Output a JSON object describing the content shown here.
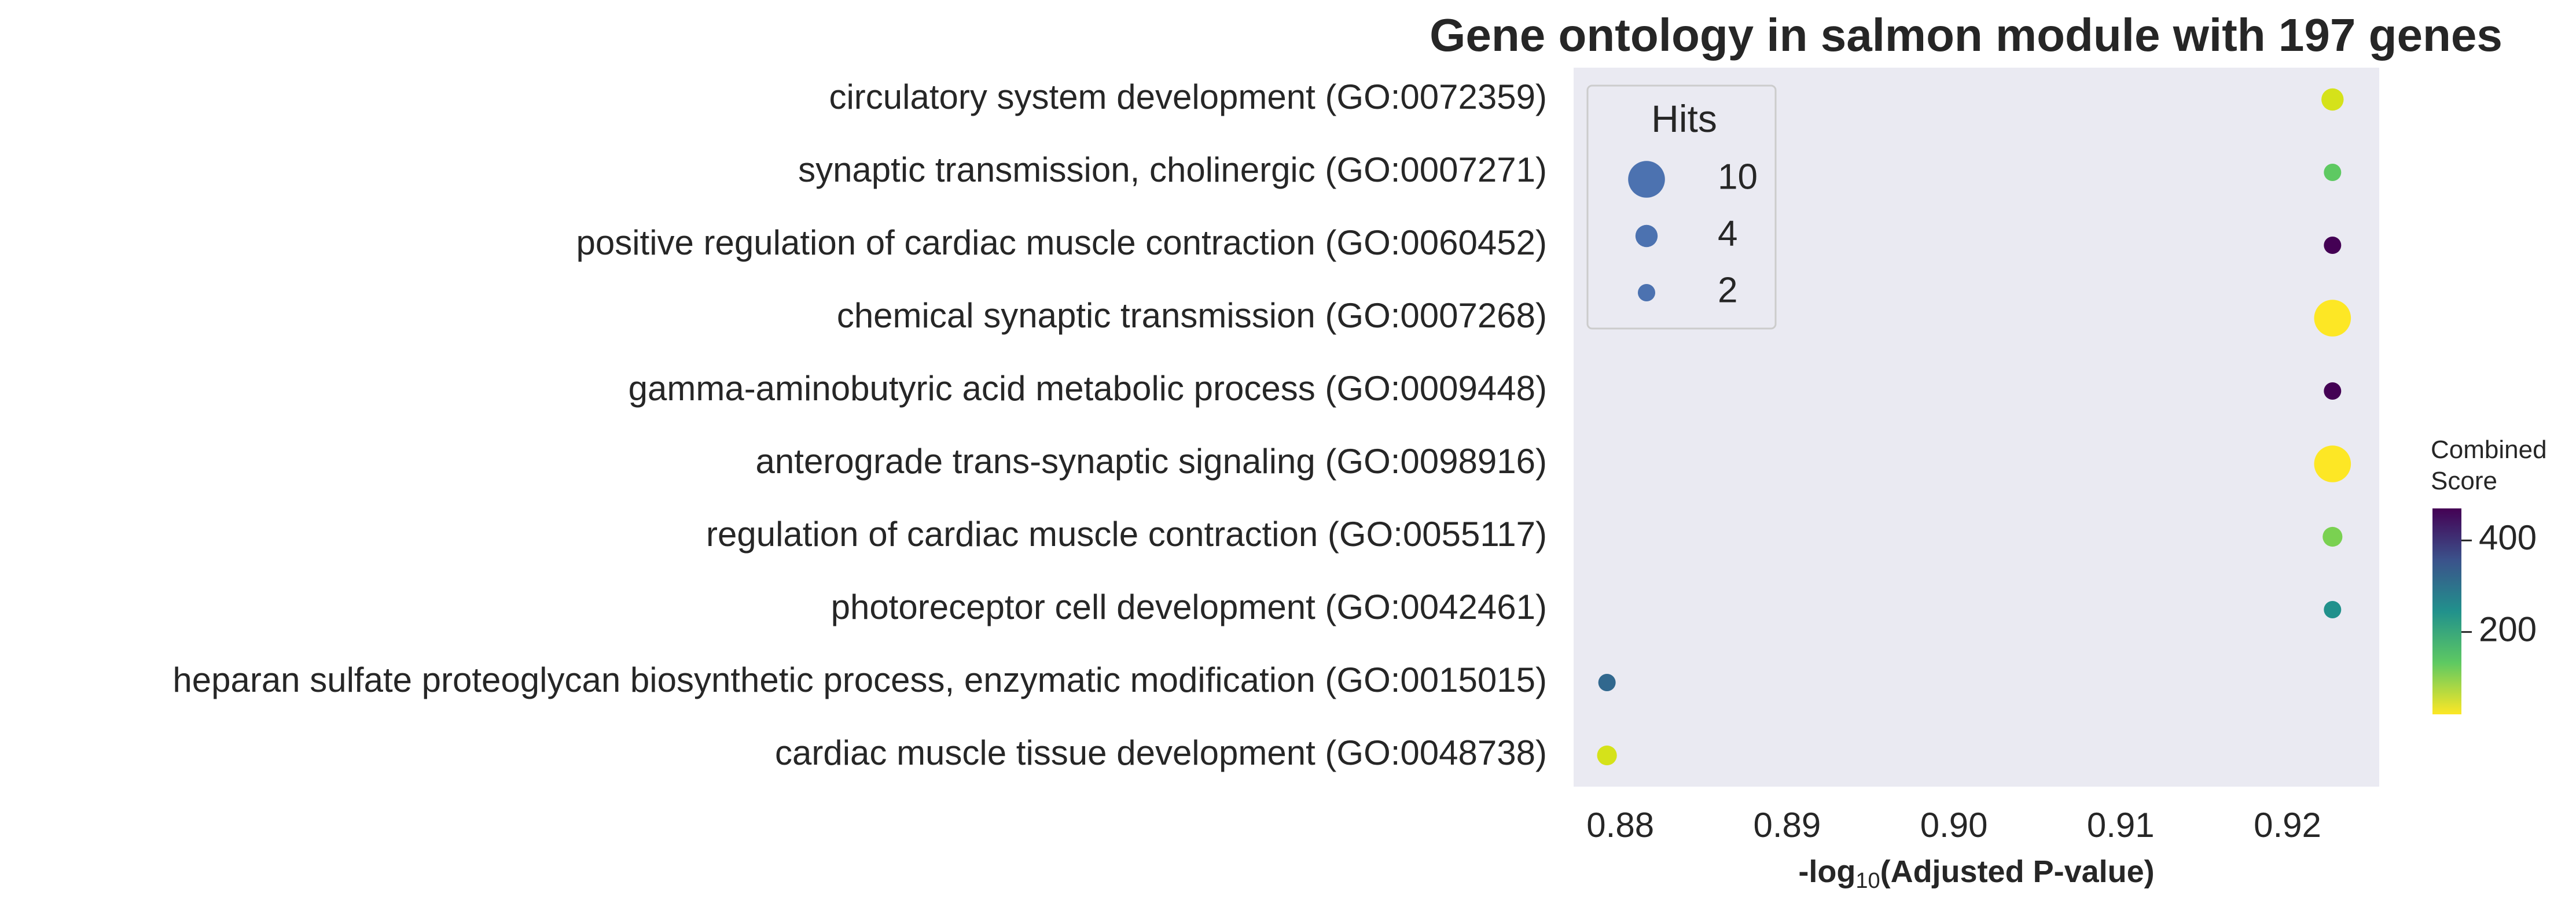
{
  "chart_data": {
    "type": "scatter",
    "title": "Gene ontology in salmon module with 197 genes",
    "xlabel": {
      "prefix": "-log",
      "subscript": "10",
      "suffix": "(Adjusted P-value)"
    },
    "ylabel": "",
    "xlim": [
      0.8772,
      0.9255
    ],
    "xticks": [
      {
        "value": 0.88,
        "label": "0.88"
      },
      {
        "value": 0.89,
        "label": "0.89"
      },
      {
        "value": 0.9,
        "label": "0.90"
      },
      {
        "value": 0.91,
        "label": "0.91"
      },
      {
        "value": 0.92,
        "label": "0.92"
      }
    ],
    "grid": false,
    "background_color": "#eaeaf2",
    "colormap": "viridis",
    "points": [
      {
        "term": "circulatory system development (GO:0072359)",
        "x": 0.9227,
        "hits": 4,
        "score": 40,
        "color": "#d5e21a"
      },
      {
        "term": "synaptic transmission, cholinergic (GO:0007271)",
        "x": 0.9227,
        "hits": 2,
        "score": 130,
        "color": "#5ec962"
      },
      {
        "term": "positive regulation of cardiac muscle contraction (GO:0060452)",
        "x": 0.9227,
        "hits": 2,
        "score": 470,
        "color": "#440154"
      },
      {
        "term": "chemical synaptic transmission (GO:0007268)",
        "x": 0.9227,
        "hits": 10,
        "score": 20,
        "color": "#fde725"
      },
      {
        "term": "gamma-aminobutyric acid metabolic process (GO:0009448)",
        "x": 0.9227,
        "hits": 2,
        "score": 460,
        "color": "#440154"
      },
      {
        "term": "anterograde trans-synaptic signaling (GO:0098916)",
        "x": 0.9227,
        "hits": 10,
        "score": 20,
        "color": "#fde725"
      },
      {
        "term": "regulation of cardiac muscle contraction (GO:0055117)",
        "x": 0.9227,
        "hits": 3,
        "score": 90,
        "color": "#7ad151"
      },
      {
        "term": "photoreceptor cell development (GO:0042461)",
        "x": 0.9227,
        "hits": 2,
        "score": 190,
        "color": "#21918c"
      },
      {
        "term": "heparan sulfate proteoglycan biosynthetic process, enzymatic modification (GO:0015015)",
        "x": 0.8792,
        "hits": 2,
        "score": 330,
        "color": "#31688e"
      },
      {
        "term": "cardiac muscle tissue development (GO:0048738)",
        "x": 0.8792,
        "hits": 3,
        "score": 40,
        "color": "#d5e21a"
      }
    ],
    "legend": {
      "title": "Hits",
      "location": "upper-left",
      "marker_color": "#4c72b0",
      "entries": [
        {
          "label": "10",
          "hits": 10
        },
        {
          "label": "4",
          "hits": 4
        },
        {
          "label": "2",
          "hits": 2
        }
      ]
    },
    "colorbar": {
      "title_lines": [
        "Combined",
        "Score"
      ],
      "range": [
        20,
        470
      ],
      "ticks": [
        {
          "value": 200,
          "label": "200"
        },
        {
          "value": 400,
          "label": "400"
        }
      ],
      "stops": [
        "#440154",
        "#3b528b",
        "#21918c",
        "#5ec962",
        "#fde725"
      ]
    }
  }
}
